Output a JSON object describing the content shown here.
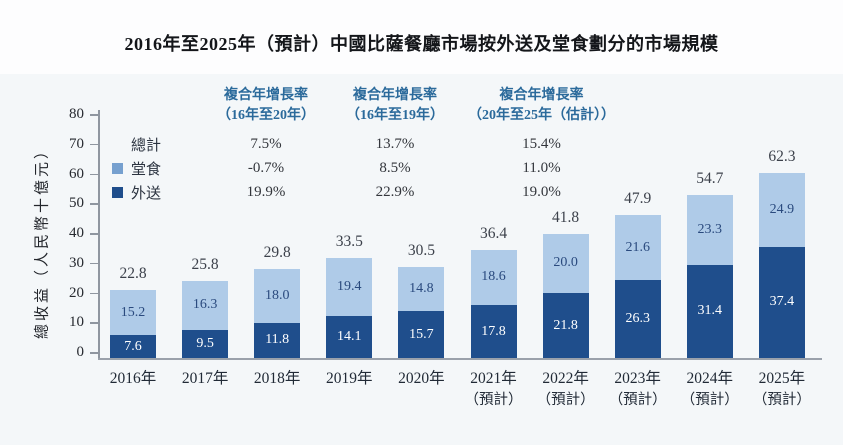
{
  "title": "2016年至2025年（預計）中國比薩餐廳市場按外送及堂食劃分的市場規模",
  "y_axis": {
    "label": "總收益（人民幣十億元）",
    "ticks": [
      0,
      10,
      20,
      30,
      40,
      50,
      60,
      70,
      80
    ]
  },
  "legend": {
    "total": "總計",
    "dine_in": "堂食",
    "delivery": "外送"
  },
  "cagr": {
    "headers": [
      {
        "line1": "複合年增長率",
        "line2": "（16年至20年）"
      },
      {
        "line1": "複合年增長率",
        "line2": "（16年至19年）"
      },
      {
        "line1": "複合年增長率",
        "line2": "（20年至25年（估計））"
      }
    ],
    "rows": [
      {
        "label": "總計",
        "swatch": "none",
        "values": [
          "7.5%",
          "13.7%",
          "15.4%"
        ]
      },
      {
        "label": "堂食",
        "swatch": "light",
        "values": [
          "-0.7%",
          "8.5%",
          "11.0%"
        ]
      },
      {
        "label": "外送",
        "swatch": "dark",
        "values": [
          "19.9%",
          "22.9%",
          "19.0%"
        ]
      }
    ]
  },
  "chart_data": {
    "type": "bar",
    "stacked": true,
    "title": "2016年至2025年（預計）中國比薩餐廳市場按外送及堂食劃分的市場規模",
    "categories": [
      "2016年",
      "2017年",
      "2018年",
      "2019年",
      "2020年",
      "2021年",
      "2022年",
      "2023年",
      "2024年",
      "2025年"
    ],
    "category_sublabels": [
      "",
      "",
      "",
      "",
      "",
      "（預計）",
      "（預計）",
      "（預計）",
      "（預計）",
      "（預計）"
    ],
    "series": [
      {
        "name": "外送",
        "color": "#1F4E8C",
        "values": [
          7.6,
          9.5,
          11.8,
          14.1,
          15.7,
          17.8,
          21.8,
          26.3,
          31.4,
          37.4
        ]
      },
      {
        "name": "堂食",
        "color": "#AFCBE8",
        "values": [
          15.2,
          16.3,
          18.0,
          19.4,
          14.8,
          18.6,
          20.0,
          21.6,
          23.3,
          24.9
        ]
      }
    ],
    "totals": [
      22.8,
      25.8,
      29.8,
      33.5,
      30.5,
      36.4,
      41.8,
      47.9,
      54.7,
      62.3
    ],
    "xlabel": "",
    "ylabel": "總收益（人民幣十億元）",
    "ylim": [
      0,
      80
    ],
    "grid": false,
    "legend_position": "upper-left"
  },
  "colors": {
    "delivery_bar": "#1F4E8C",
    "dine_in_bar": "#AFCBE8",
    "axis": "#8f96a0",
    "header_text": "#2b6a9b",
    "value_on_light": "#2a4a7e",
    "value_on_dark": "#ffffff"
  }
}
